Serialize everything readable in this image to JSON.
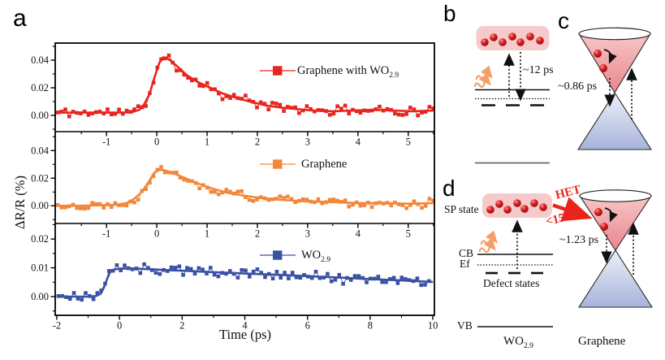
{
  "figure": {
    "panel_a": "a",
    "panel_b": "b",
    "panel_c": "c",
    "panel_d": "d",
    "x_axis_label": "Time (ps)",
    "y_axis_label": "ΔR/R (%)"
  },
  "colors": {
    "red": "#e8241e",
    "orange": "#f4863a",
    "blue": "#3a50a4",
    "pink_box": "#f6c9ca",
    "photon": "#f59e68",
    "het_red": "#e8251d"
  },
  "chart_data": {
    "type": "scatter",
    "title": "",
    "xlabel": "Time (ps)",
    "ylabel": "ΔR/R (%)",
    "legend_position": "right-inside",
    "grid": false,
    "panels": [
      {
        "name": "graphene-with-wo29",
        "legend": {
          "prefix": "Graphene with WO",
          "sub": "2.9"
        },
        "color": "#e8241e",
        "x_range": [
          -2.02,
          5.52
        ],
        "y_range": [
          -0.0118,
          0.0524
        ],
        "x_ticks": [
          -1,
          0,
          1,
          2,
          3,
          4,
          5
        ],
        "x_tick_labels": [
          "-1",
          "0",
          "1",
          "2",
          "3",
          "4",
          "5"
        ],
        "x_minor": [
          -1.5,
          -0.5,
          0.5,
          1.5,
          2.5,
          3.5,
          4.5,
          5.5
        ],
        "y_ticks": [
          0,
          0.02,
          0.04
        ],
        "y_tick_labels": [
          "0.00",
          "0.02",
          "0.04"
        ],
        "y_minor": [
          -0.01,
          0.01,
          0.03,
          0.05
        ],
        "fit": [
          [
            -2.0,
            0.002
          ],
          [
            -1.5,
            0.002
          ],
          [
            -1.0,
            0.002
          ],
          [
            -0.7,
            0.002
          ],
          [
            -0.5,
            0.0022
          ],
          [
            -0.35,
            0.004
          ],
          [
            -0.25,
            0.008
          ],
          [
            -0.15,
            0.015
          ],
          [
            -0.05,
            0.027
          ],
          [
            0.05,
            0.038
          ],
          [
            0.12,
            0.042
          ],
          [
            0.2,
            0.0415
          ],
          [
            0.3,
            0.039
          ],
          [
            0.45,
            0.034
          ],
          [
            0.6,
            0.029
          ],
          [
            0.8,
            0.0245
          ],
          [
            1.0,
            0.021
          ],
          [
            1.3,
            0.016
          ],
          [
            1.6,
            0.0125
          ],
          [
            1.9,
            0.0095
          ],
          [
            2.2,
            0.007
          ],
          [
            2.5,
            0.0055
          ],
          [
            2.8,
            0.0045
          ],
          [
            3.1,
            0.0035
          ],
          [
            3.5,
            0.003
          ],
          [
            3.9,
            0.0035
          ],
          [
            4.3,
            0.004
          ],
          [
            4.7,
            0.0035
          ],
          [
            5.1,
            0.003
          ],
          [
            5.5,
            0.0035
          ]
        ],
        "scatter": {
          "start": -1.97,
          "step": 0.0762,
          "n": 99,
          "noise": 0.0033,
          "seed": 11
        }
      },
      {
        "name": "graphene",
        "legend": {
          "prefix": "Graphene",
          "sub": ""
        },
        "color": "#f4863a",
        "x_range": [
          -2.02,
          5.52
        ],
        "y_range": [
          -0.0128,
          0.0537
        ],
        "x_ticks": [
          -1,
          0,
          1,
          2,
          3,
          4,
          5
        ],
        "x_tick_labels": [
          "-1",
          "0",
          "1",
          "2",
          "3",
          "4",
          "5"
        ],
        "x_minor": [
          -1.5,
          -0.5,
          0.5,
          1.5,
          2.5,
          3.5,
          4.5,
          5.5
        ],
        "y_ticks": [
          0,
          0.02,
          0.04
        ],
        "y_tick_labels": [
          "0.00",
          "0.02",
          "0.04"
        ],
        "y_minor": [
          -0.01,
          0.01,
          0.03,
          0.05
        ],
        "fit": [
          [
            -2.0,
            0.0
          ],
          [
            -1.5,
            0.0
          ],
          [
            -1.0,
            0.0005
          ],
          [
            -0.8,
            0.0008
          ],
          [
            -0.6,
            0.002
          ],
          [
            -0.45,
            0.005
          ],
          [
            -0.3,
            0.01
          ],
          [
            -0.15,
            0.018
          ],
          [
            -0.05,
            0.024
          ],
          [
            0.05,
            0.026
          ],
          [
            0.15,
            0.0258
          ],
          [
            0.3,
            0.024
          ],
          [
            0.5,
            0.021
          ],
          [
            0.7,
            0.018
          ],
          [
            0.9,
            0.015
          ],
          [
            1.1,
            0.0125
          ],
          [
            1.4,
            0.0095
          ],
          [
            1.7,
            0.0075
          ],
          [
            2.0,
            0.006
          ],
          [
            2.4,
            0.0045
          ],
          [
            2.8,
            0.0035
          ],
          [
            3.2,
            0.003
          ],
          [
            3.6,
            0.0025
          ],
          [
            4.0,
            0.002
          ],
          [
            4.5,
            0.002
          ],
          [
            5.0,
            0.0015
          ],
          [
            5.5,
            0.002
          ]
        ],
        "scatter": {
          "start": -1.97,
          "step": 0.0762,
          "n": 99,
          "noise": 0.003,
          "seed": 22
        }
      },
      {
        "name": "wo29",
        "legend": {
          "prefix": "WO",
          "sub": "2.9"
        },
        "color": "#3a50a4",
        "x_range": [
          -2.05,
          10.05
        ],
        "y_range": [
          -0.0065,
          0.0254
        ],
        "x_ticks": [
          -2,
          0,
          2,
          4,
          6,
          8,
          10
        ],
        "x_tick_labels": [
          "-2",
          "0",
          "2",
          "4",
          "6",
          "8",
          "10"
        ],
        "x_minor": [
          -1,
          1,
          3,
          5,
          7,
          9
        ],
        "y_ticks": [
          0,
          0.01,
          0.02
        ],
        "y_tick_labels": [
          "0.00",
          "0.01",
          "0.02"
        ],
        "y_minor": [
          -0.005,
          0.005,
          0.015,
          0.025
        ],
        "fit": [
          [
            -2.0,
            0.0
          ],
          [
            -1.5,
            0.0
          ],
          [
            -1.0,
            0.0
          ],
          [
            -0.75,
            0.0002
          ],
          [
            -0.6,
            0.001
          ],
          [
            -0.5,
            0.003
          ],
          [
            -0.4,
            0.006
          ],
          [
            -0.3,
            0.0085
          ],
          [
            -0.2,
            0.0093
          ],
          [
            0.0,
            0.0097
          ],
          [
            0.5,
            0.0097
          ],
          [
            1.0,
            0.0095
          ],
          [
            1.5,
            0.0092
          ],
          [
            2.0,
            0.009
          ],
          [
            3.0,
            0.0085
          ],
          [
            4.0,
            0.008
          ],
          [
            5.0,
            0.0076
          ],
          [
            6.0,
            0.0071
          ],
          [
            7.0,
            0.0066
          ],
          [
            8.0,
            0.0061
          ],
          [
            9.0,
            0.0056
          ],
          [
            10.0,
            0.0051
          ]
        ],
        "scatter": {
          "start": -1.95,
          "step": 0.1245,
          "n": 96,
          "noise": 0.0016,
          "seed": 33
        }
      }
    ]
  },
  "diagrams": {
    "b": {
      "lifetime": "~12 ps"
    },
    "c": {
      "lifetime": "~0.86 ps"
    },
    "d": {
      "sp_state": "SP state",
      "het_label": "HET",
      "het_time": "<150 fs",
      "lifetime": "~1.23 ps",
      "cb": "CB",
      "ef": "Ef",
      "defect_states": "Defect states",
      "vb": "VB",
      "material_prefix": "WO",
      "material_sub": "2.9",
      "graphene_label": "Graphene"
    }
  }
}
